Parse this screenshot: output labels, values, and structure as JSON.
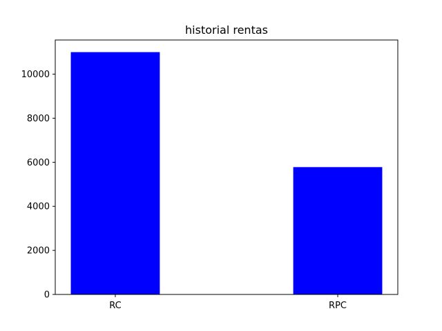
{
  "chart_data": {
    "type": "bar",
    "title": "historial rentas",
    "xlabel": "",
    "ylabel": "",
    "categories": [
      "RC",
      "RPC"
    ],
    "values": [
      11000,
      5780
    ],
    "ylim": [
      0,
      11550
    ],
    "yticks": [
      0,
      2000,
      4000,
      6000,
      8000,
      10000
    ],
    "grid": false,
    "bar_color": "#0000ff"
  }
}
